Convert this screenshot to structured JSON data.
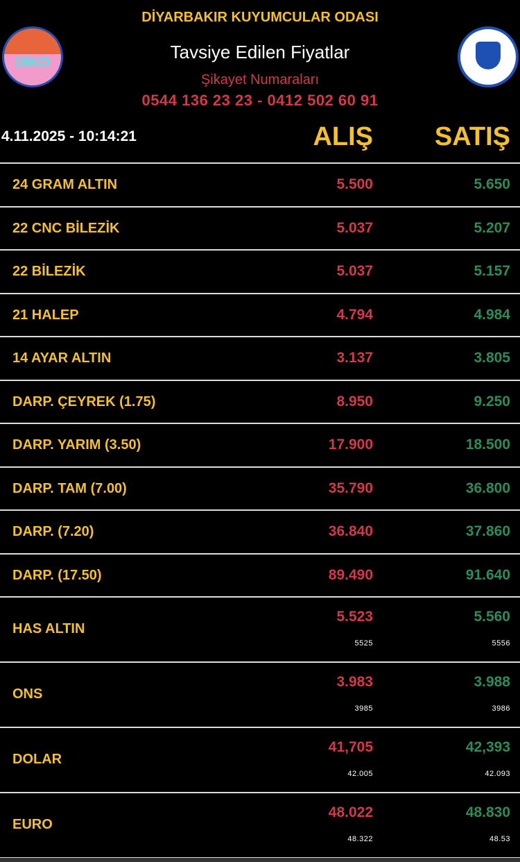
{
  "header": {
    "organization": "DİYARBAKIR KUYUMCULAR ODASI",
    "subtitle": "Tavsiye Edilen Fiyatlar",
    "complaint_label": "Şikayet Numaraları",
    "phones": "0544 136 23 23 - 0412 502 60 91",
    "left_logo_text": "DİKO"
  },
  "datetime": "4.11.2025 - 10:14:21",
  "columns": {
    "buy": "ALIŞ",
    "sell": "SATIŞ"
  },
  "colors": {
    "gold": "#f5c12a",
    "buy": "#d2394a",
    "sell": "#2e8b5a"
  },
  "rows": [
    {
      "name": "24 GRAM ALTIN",
      "buy": "5.500",
      "sell": "5.650"
    },
    {
      "name": "22 CNC BİLEZİK",
      "buy": "5.037",
      "sell": "5.207"
    },
    {
      "name": "22 BİLEZİK",
      "buy": "5.037",
      "sell": "5.157"
    },
    {
      "name": "21 HALEP",
      "buy": "4.794",
      "sell": "4.984"
    },
    {
      "name": "14 AYAR ALTIN",
      "buy": "3.137",
      "sell": "3.805"
    },
    {
      "name": "DARP. ÇEYREK (1.75)",
      "buy": "8.950",
      "sell": "9.250"
    },
    {
      "name": "DARP. YARIM (3.50)",
      "buy": "17.900",
      "sell": "18.500"
    },
    {
      "name": "DARP. TAM (7.00)",
      "buy": "35.790",
      "sell": "36.800"
    },
    {
      "name": "DARP. (7.20)",
      "buy": "36.840",
      "sell": "37.860"
    },
    {
      "name": "DARP. (17.50)",
      "buy": "89.490",
      "sell": "91.640"
    }
  ],
  "market_rows": [
    {
      "name": "HAS ALTIN",
      "buy": "5.523",
      "sell": "5.560",
      "buy_sub": "5525",
      "sell_sub": "5556"
    },
    {
      "name": "ONS",
      "buy": "3.983",
      "sell": "3.988",
      "buy_sub": "3985",
      "sell_sub": "3986"
    },
    {
      "name": "DOLAR",
      "buy": "41,705",
      "sell": "42,393",
      "buy_sub": "42.005",
      "sell_sub": "42.093"
    },
    {
      "name": "EURO",
      "buy": "48.022",
      "sell": "48.830",
      "buy_sub": "48.322",
      "sell_sub": "48.53"
    }
  ]
}
